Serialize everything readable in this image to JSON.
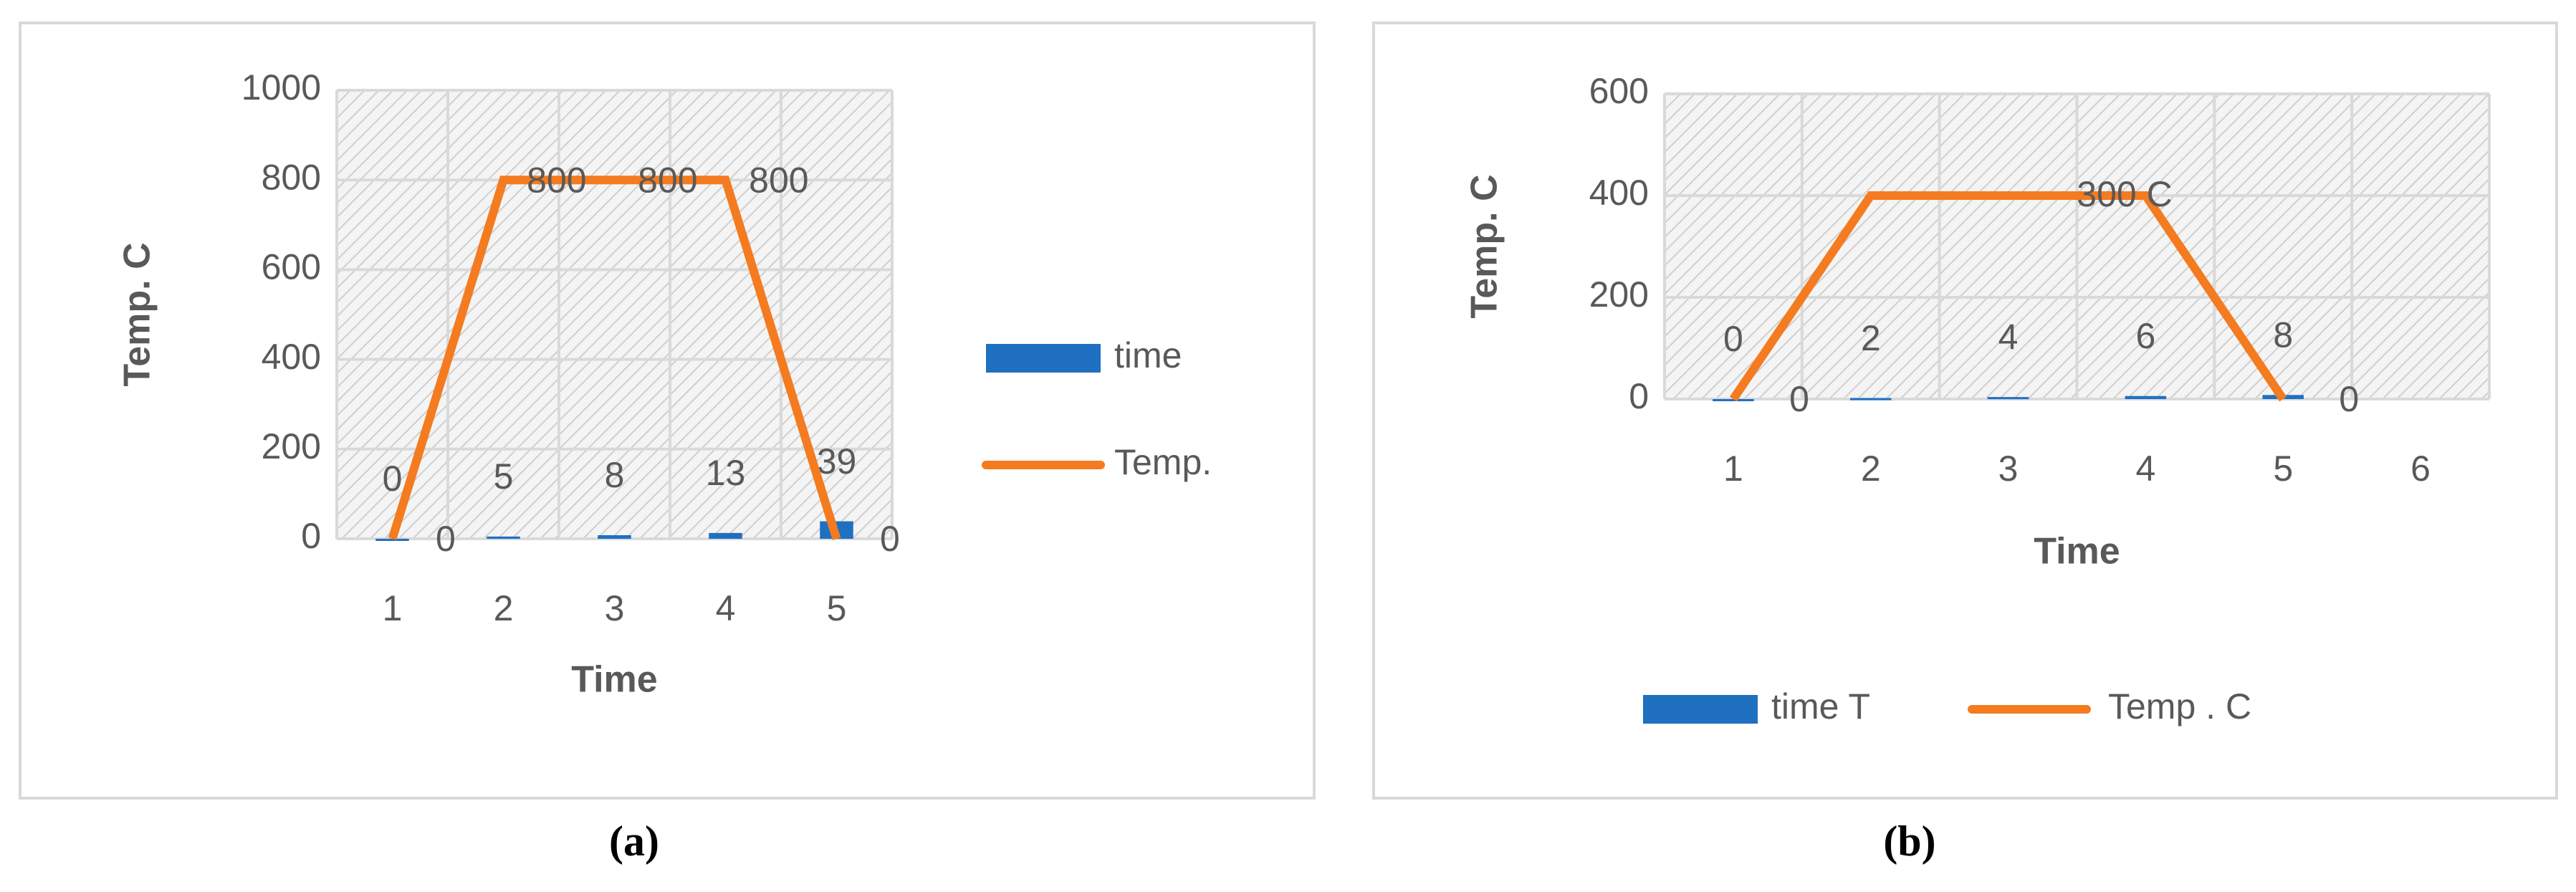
{
  "chart_data": [
    {
      "type": "combo",
      "caption": "(a)",
      "x_label": "Time",
      "y_label": "Temp. C",
      "categories": [
        "1",
        "2",
        "3",
        "4",
        "5"
      ],
      "series": [
        {
          "name": "time",
          "kind": "bar",
          "color": "#1f70c1",
          "values": [
            0,
            5,
            8,
            13,
            39
          ]
        },
        {
          "name": "Temp.",
          "kind": "line",
          "color": "#f47b20",
          "values": [
            0,
            800,
            800,
            800,
            0
          ]
        }
      ],
      "ylim": [
        0,
        1000
      ],
      "yticks": [
        0,
        200,
        400,
        600,
        800,
        1000
      ],
      "grid": true,
      "legend": "right"
    },
    {
      "type": "combo",
      "caption": "(b)",
      "x_label": "Time",
      "y_label": "Temp. C",
      "categories": [
        "1",
        "2",
        "3",
        "4",
        "5",
        "6"
      ],
      "series": [
        {
          "name": "time T",
          "kind": "bar",
          "color": "#1f70c1",
          "values": [
            0,
            2,
            4,
            6,
            8,
            null
          ]
        },
        {
          "name": "Temp . C",
          "kind": "line",
          "color": "#f47b20",
          "values": [
            0,
            400,
            400,
            400,
            0,
            null
          ],
          "value_labels": [
            "0",
            null,
            null,
            null,
            "0",
            null
          ]
        }
      ],
      "annotations": [
        {
          "text": "300 C"
        }
      ],
      "ylim": [
        0,
        600
      ],
      "yticks": [
        0,
        200,
        400,
        600
      ],
      "grid": true,
      "legend": "bottom"
    }
  ]
}
